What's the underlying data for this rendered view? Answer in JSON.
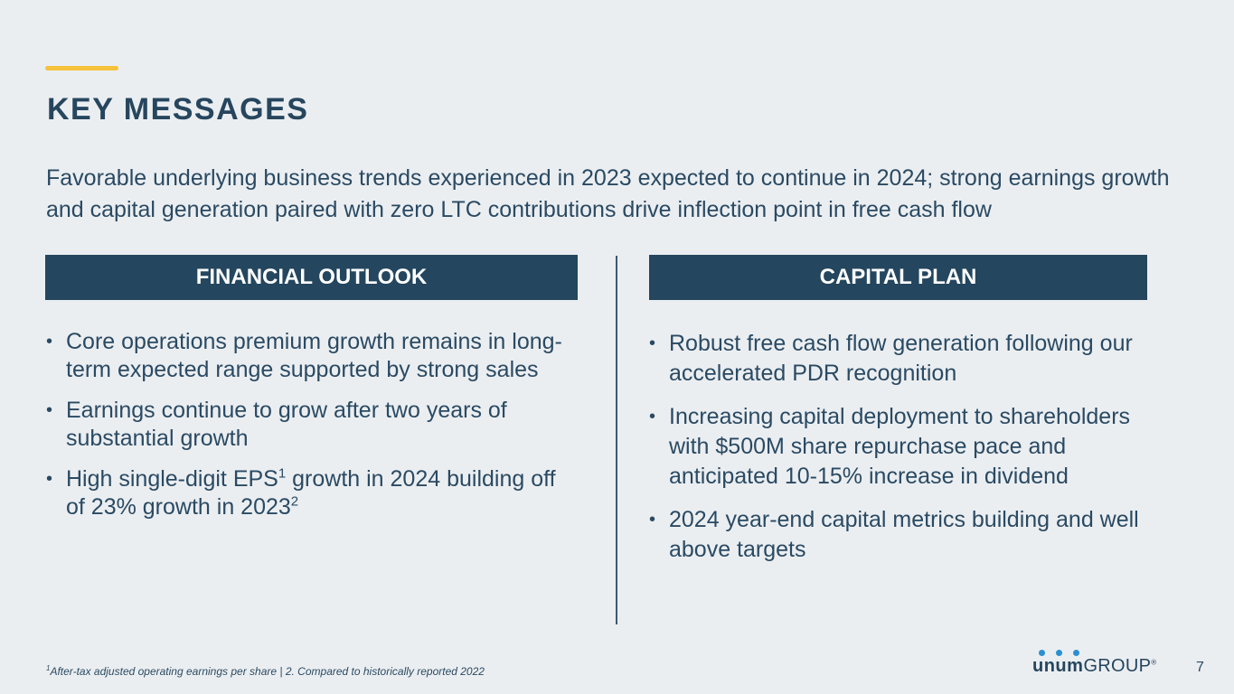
{
  "slide": {
    "title": "KEY MESSAGES",
    "intro": "Favorable underlying business trends experienced in 2023 expected to continue in 2024; strong earnings growth and capital generation paired with zero LTC contributions drive inflection point in free cash flow",
    "page_number": "7"
  },
  "left_panel": {
    "heading": "FINANCIAL OUTLOOK",
    "bullets": [
      "Core operations premium growth remains in long-term expected range supported by strong sales",
      "Earnings continue to grow after two years of substantial growth",
      {
        "before_sup": "High single-digit EPS",
        "sup1": "1",
        "middle": " growth in 2024 building off of 23% growth in 2023",
        "sup2": "2"
      }
    ]
  },
  "right_panel": {
    "heading": "CAPITAL PLAN",
    "bullets": [
      "Robust free cash flow generation following our accelerated PDR recognition",
      "Increasing capital deployment to shareholders with $500M share repurchase pace and anticipated 10-15% increase in dividend",
      "2024 year-end capital metrics building and well above targets"
    ]
  },
  "footnote": {
    "sup": "1",
    "text": "After-tax adjusted operating earnings per share | 2. Compared to historically reported 2022"
  },
  "logo": {
    "brand": "unum",
    "suffix": "GROUP",
    "mark": "®"
  },
  "colors": {
    "accent_bar": "#f6c23c",
    "header_bg": "#24465e",
    "text": "#2a4a63",
    "background": "#ebeef1",
    "logo_dots": "#2b8fd1"
  }
}
